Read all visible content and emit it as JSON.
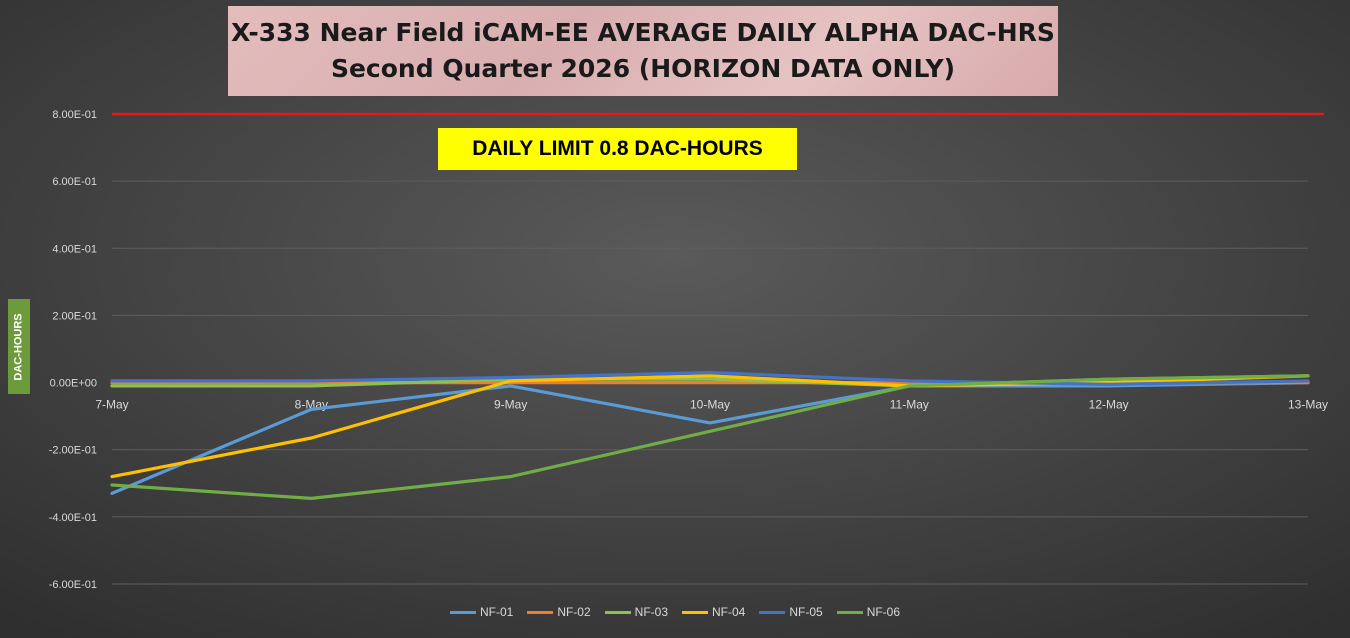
{
  "chart_data": {
    "type": "line",
    "title": "X-333 Near Field iCAM-EE AVERAGE DAILY ALPHA DAC-HRS",
    "subtitle": "Second Quarter 2026 (HORIZON DATA ONLY)",
    "xlabel": "",
    "ylabel": "DAC-HOURS",
    "ylim": [
      -0.7,
      0.8
    ],
    "grid": true,
    "legend_position": "bottom",
    "categories": [
      "7-May",
      "8-May",
      "9-May",
      "10-May",
      "11-May",
      "12-May",
      "13-May"
    ],
    "y_ticks": [
      {
        "value": 0.8,
        "label": "8.00E-01"
      },
      {
        "value": 0.6,
        "label": "6.00E-01"
      },
      {
        "value": 0.4,
        "label": "4.00E-01"
      },
      {
        "value": 0.2,
        "label": "2.00E-01"
      },
      {
        "value": 0.0,
        "label": "0.00E+00"
      },
      {
        "value": -0.2,
        "label": "-2.00E-01"
      },
      {
        "value": -0.4,
        "label": "-4.00E-01"
      },
      {
        "value": -0.6,
        "label": "-6.00E-01"
      }
    ],
    "series": [
      {
        "name": "NF-01",
        "color": "#5b9bd5",
        "values": [
          -0.33,
          -0.08,
          -0.01,
          -0.12,
          -0.01,
          -0.01,
          0.0
        ]
      },
      {
        "name": "NF-02",
        "color": "#ed7d31",
        "values": [
          0.0,
          0.0,
          0.0,
          0.0,
          0.0,
          0.0,
          0.0
        ]
      },
      {
        "name": "NF-03",
        "color": "#8cc152",
        "values": [
          -0.01,
          -0.01,
          0.01,
          0.01,
          -0.01,
          0.01,
          0.02
        ]
      },
      {
        "name": "NF-04",
        "color": "#ffc000",
        "values": [
          -0.28,
          -0.165,
          0.005,
          0.02,
          -0.01,
          0.0,
          0.02
        ]
      },
      {
        "name": "NF-05",
        "color": "#4472c4",
        "values": [
          0.005,
          0.005,
          0.015,
          0.03,
          0.005,
          -0.005,
          0.005
        ]
      },
      {
        "name": "NF-06",
        "color": "#70ad47",
        "values": [
          -0.305,
          -0.345,
          -0.28,
          -0.145,
          -0.01,
          0.01,
          0.02
        ]
      }
    ],
    "limit_line": {
      "value": 0.8,
      "color": "#e31a1c",
      "label": "DAILY LIMIT 0.8 DAC-HOURS"
    }
  }
}
